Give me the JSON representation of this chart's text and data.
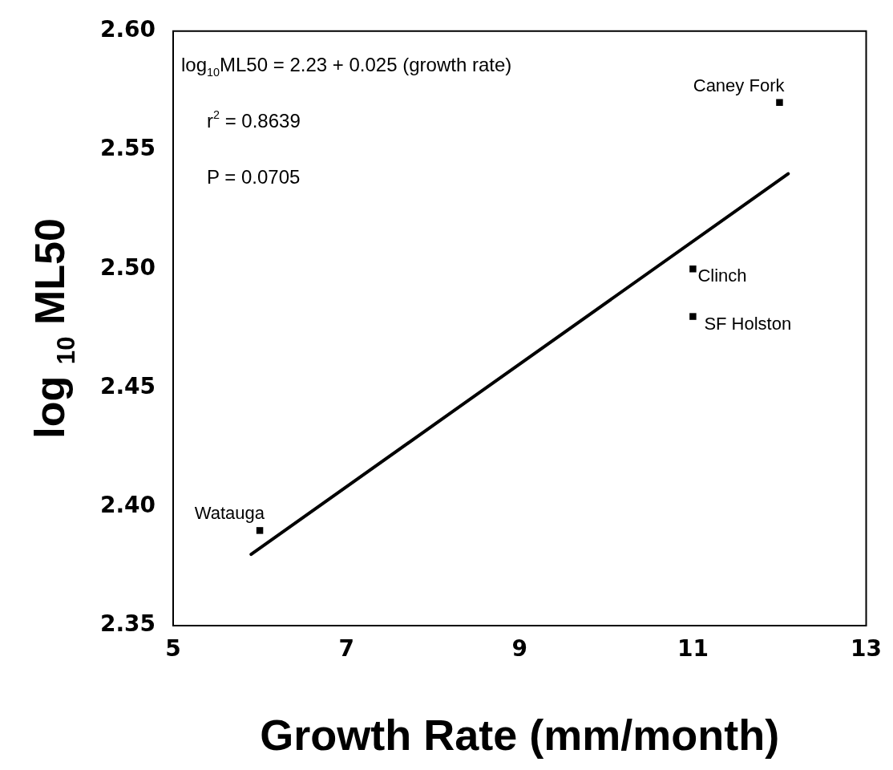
{
  "chart_data": {
    "type": "scatter",
    "xlabel": "Growth Rate (mm/month)",
    "ylabel": "log $_{10}$ ML50",
    "xlim": [
      5,
      13
    ],
    "xticks": [
      5,
      7,
      9,
      11,
      13
    ],
    "ylim": [
      2.35,
      2.6
    ],
    "yticks": [
      2.35,
      {
        "value": 2.4,
        "label": "2.40"
      },
      2.45,
      {
        "value": 2.5,
        "label": "2.50"
      },
      2.55,
      {
        "value": 2.6,
        "label": "2.60"
      }
    ],
    "grid": false,
    "legend": false,
    "marker": "square",
    "series": [
      {
        "color": "#000000",
        "x": [
          6,
          11,
          11,
          12
        ],
        "values": [
          2.39,
          2.5,
          2.48,
          2.57
        ]
      },
      {
        "type": "line",
        "color": "#000000",
        "x": [
          5.9,
          12.1
        ],
        "values": [
          2.38,
          2.54
        ],
        "marker": "none",
        "line_style": "solid"
      }
    ],
    "annotations": [
      "log$_{10}$ML50 = 2.23 + 0.025 (growth rate)",
      "r$^{2}$ = 0.8639",
      "P = 0.0705",
      {
        "text": "Watauga",
        "x": 6,
        "y": 2.39
      },
      {
        "text": "Clinch",
        "x": 11,
        "y": 2.5
      },
      {
        "text": "SF Holston",
        "x": 11,
        "y": 2.48
      },
      {
        "text": "Caney Fork",
        "x": 12,
        "y": 2.57
      }
    ]
  }
}
